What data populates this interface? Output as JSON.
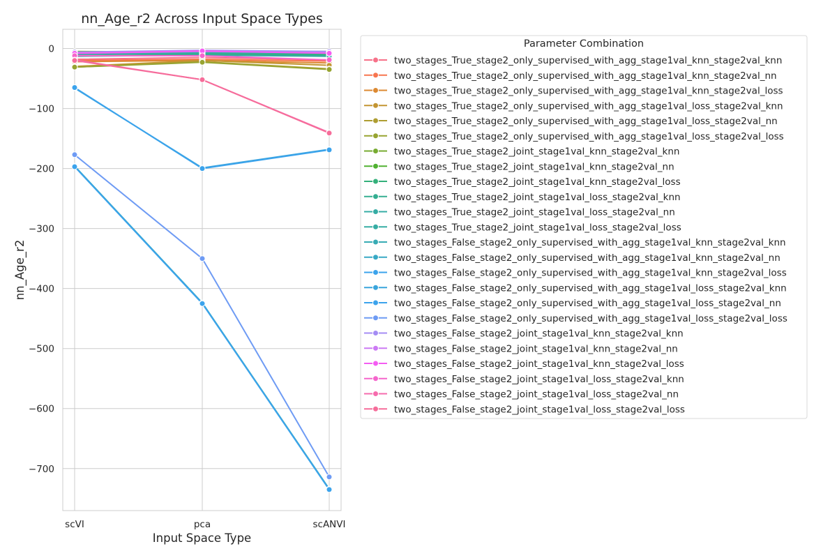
{
  "chart_data": {
    "type": "line",
    "title": "nn_Age_r2 Across Input Space Types",
    "xlabel": "Input Space Type",
    "ylabel": "nn_Age_r2",
    "categories": [
      "scVI",
      "pca",
      "scANVI"
    ],
    "ylim": [
      -770,
      32
    ],
    "yticks": [
      0,
      -100,
      -200,
      -300,
      -400,
      -500,
      -600,
      -700
    ],
    "grid": true,
    "legend": {
      "title": "Parameter Combination",
      "placement": "outside-right"
    },
    "series": [
      {
        "name": "two_stages_True_stage2_only_supervised_with_agg_stage1val_knn_stage2val_knn",
        "color": "#f77189",
        "values": [
          -18,
          -15,
          -19
        ]
      },
      {
        "name": "two_stages_True_stage2_only_supervised_with_agg_stage1val_knn_stage2val_nn",
        "color": "#f7754f",
        "values": [
          -20,
          -18,
          -21
        ]
      },
      {
        "name": "two_stages_True_stage2_only_supervised_with_agg_stage1val_knn_stage2val_loss",
        "color": "#dc8932",
        "values": [
          -22,
          -20,
          -24
        ]
      },
      {
        "name": "two_stages_True_stage2_only_supervised_with_agg_stage1val_loss_stage2val_knn",
        "color": "#c39532",
        "values": [
          -30,
          -20,
          -28
        ]
      },
      {
        "name": "two_stages_True_stage2_only_supervised_with_agg_stage1val_loss_stage2val_nn",
        "color": "#ae9d31",
        "values": [
          -31,
          -22,
          -34
        ]
      },
      {
        "name": "two_stages_True_stage2_only_supervised_with_agg_stage1val_loss_stage2val_loss",
        "color": "#97a431",
        "values": [
          -31,
          -23,
          -35
        ]
      },
      {
        "name": "two_stages_True_stage2_joint_stage1val_knn_stage2val_knn",
        "color": "#77ab31",
        "values": [
          -5,
          -6,
          -5
        ]
      },
      {
        "name": "two_stages_True_stage2_joint_stage1val_knn_stage2val_nn",
        "color": "#50b131",
        "values": [
          -7,
          -8,
          -9
        ]
      },
      {
        "name": "two_stages_True_stage2_joint_stage1val_knn_stage2val_loss",
        "color": "#33b07a",
        "values": [
          -9,
          -9,
          -10
        ]
      },
      {
        "name": "two_stages_True_stage2_joint_stage1val_loss_stage2val_knn",
        "color": "#34ae91",
        "values": [
          -12,
          -10,
          -12
        ]
      },
      {
        "name": "two_stages_True_stage2_joint_stage1val_loss_stage2val_nn",
        "color": "#35aca4",
        "values": [
          -13,
          -11,
          -13
        ]
      },
      {
        "name": "two_stages_True_stage2_joint_stage1val_loss_stage2val_loss",
        "color": "#36ada4",
        "values": [
          -10,
          -7,
          -8
        ]
      },
      {
        "name": "two_stages_False_stage2_only_supervised_with_agg_stage1val_knn_stage2val_knn",
        "color": "#37abb4",
        "values": [
          -196,
          -424,
          -734
        ]
      },
      {
        "name": "two_stages_False_stage2_only_supervised_with_agg_stage1val_knn_stage2val_nn",
        "color": "#38a9c5",
        "values": [
          -196,
          -424,
          -735
        ]
      },
      {
        "name": "two_stages_False_stage2_only_supervised_with_agg_stage1val_knn_stage2val_loss",
        "color": "#3ba3ec",
        "values": [
          -197,
          -425,
          -735
        ]
      },
      {
        "name": "two_stages_False_stage2_only_supervised_with_agg_stage1val_loss_stage2val_knn",
        "color": "#3aa5dc",
        "values": [
          -66,
          -199,
          -168
        ]
      },
      {
        "name": "two_stages_False_stage2_only_supervised_with_agg_stage1val_loss_stage2val_nn",
        "color": "#3ba3ec",
        "values": [
          -65,
          -200,
          -169
        ]
      },
      {
        "name": "two_stages_False_stage2_only_supervised_with_agg_stage1val_loss_stage2val_loss",
        "color": "#6e9bf4",
        "values": [
          -177,
          -350,
          -714
        ]
      },
      {
        "name": "two_stages_False_stage2_joint_stage1val_knn_stage2val_knn",
        "color": "#a48cf4",
        "values": [
          -6,
          -3,
          -5
        ]
      },
      {
        "name": "two_stages_False_stage2_joint_stage1val_knn_stage2val_nn",
        "color": "#cc7af4",
        "values": [
          -8,
          -5,
          -7
        ]
      },
      {
        "name": "two_stages_False_stage2_joint_stage1val_knn_stage2val_loss",
        "color": "#f45cf2",
        "values": [
          -8,
          -4,
          -8
        ]
      },
      {
        "name": "two_stages_False_stage2_joint_stage1val_loss_stage2val_knn",
        "color": "#f565cc",
        "values": [
          -12,
          -12,
          -19
        ]
      },
      {
        "name": "two_stages_False_stage2_joint_stage1val_loss_stage2val_nn",
        "color": "#f66bad",
        "values": [
          -19,
          -52,
          -140
        ]
      },
      {
        "name": "two_stages_False_stage2_joint_stage1val_loss_stage2val_loss",
        "color": "#f66d9a",
        "values": [
          -20,
          -52,
          -141
        ]
      }
    ]
  }
}
